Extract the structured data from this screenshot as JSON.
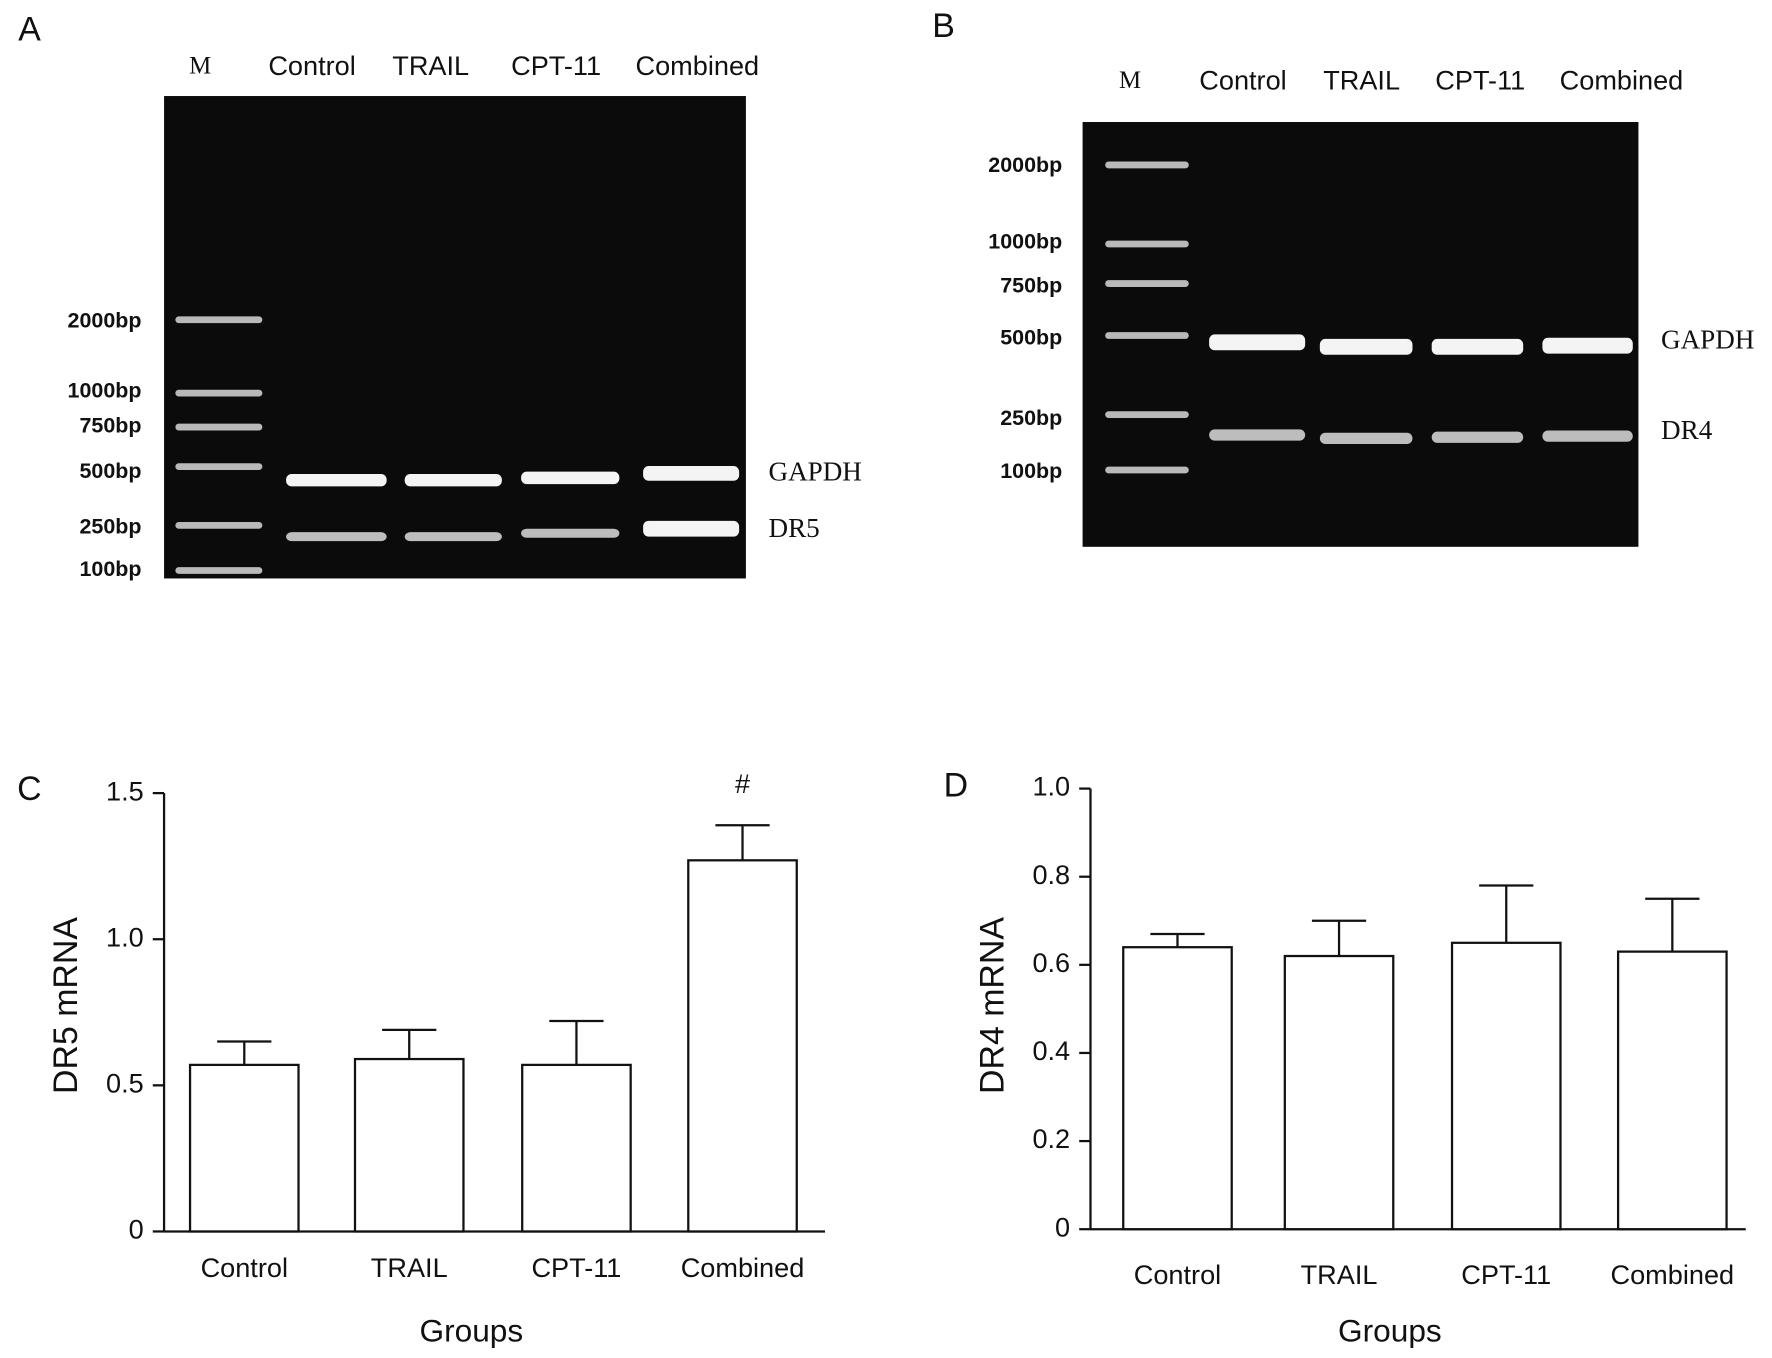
{
  "gels": [
    {
      "panel": "A",
      "lanes": [
        "M",
        "Control",
        "TRAIL",
        "CPT-11",
        "Combined"
      ],
      "markers": [
        "2000bp",
        "1000bp",
        "750bp",
        "500bp",
        "250bp",
        "100bp"
      ],
      "bands": [
        "GAPDH",
        "DR5"
      ]
    },
    {
      "panel": "B",
      "lanes": [
        "M",
        "Control",
        "TRAIL",
        "CPT-11",
        "Combined"
      ],
      "markers": [
        "2000bp",
        "1000bp",
        "750bp",
        "500bp",
        "250bp",
        "100bp"
      ],
      "bands": [
        "GAPDH",
        "DR4"
      ]
    }
  ],
  "chart_data": [
    {
      "type": "bar",
      "panel": "C",
      "x_label": "Groups",
      "y_label": "DR5 mRNA",
      "categories": [
        "Control",
        "TRAIL",
        "CPT-11",
        "Combined"
      ],
      "values": [
        0.57,
        0.59,
        0.57,
        1.27
      ],
      "errors": [
        0.08,
        0.1,
        0.15,
        0.12
      ],
      "color": "#ffffff",
      "ylim": [
        0,
        1.5
      ],
      "yticks": [
        0,
        0.5,
        {
          "value": 1,
          "label": "1.0"
        },
        1.5
      ],
      "annotations": [
        {
          "text": "#",
          "x": "Combined"
        }
      ]
    },
    {
      "type": "bar",
      "panel": "D",
      "x_label": "Groups",
      "y_label": "DR4 mRNA",
      "categories": [
        "Control",
        "TRAIL",
        "CPT-11",
        "Combined"
      ],
      "values": [
        0.64,
        0.62,
        0.65,
        0.63
      ],
      "errors": [
        0.03,
        0.08,
        0.13,
        0.12
      ],
      "color": "#ffffff",
      "ylim": [
        0,
        1
      ],
      "yticks": [
        0,
        0.2,
        0.4,
        0.6,
        0.8,
        {
          "value": 1,
          "label": "1.0"
        }
      ]
    }
  ]
}
